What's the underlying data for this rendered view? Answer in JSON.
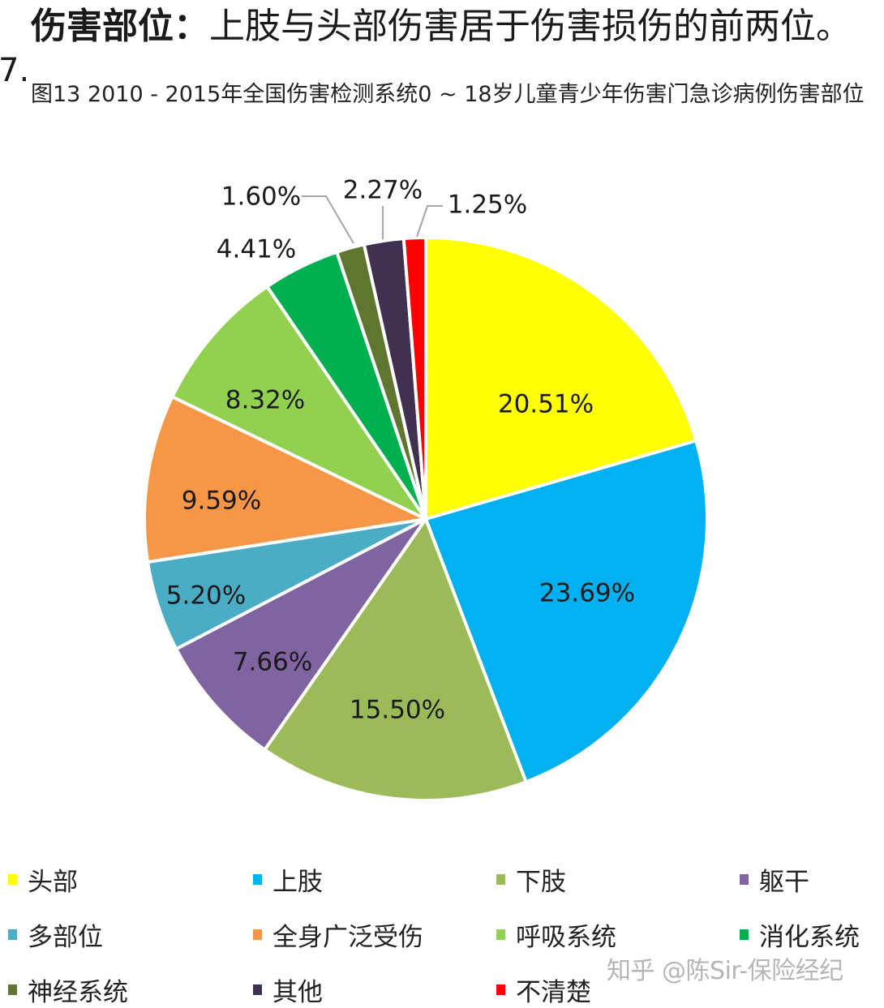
{
  "header": {
    "headline_bold": "伤害部位：",
    "headline_rest": "上肢与头部伤害居于伤害损伤的前两位。",
    "list_number": "7.",
    "caption": "图13  2010 - 2015年全国伤害检测系统0 ~ 18岁儿童青少年伤害门急诊病例伤害部位"
  },
  "chart_data": {
    "type": "pie",
    "title": "2010 - 2015年全国伤害检测系统0 ~ 18岁儿童青少年伤害门急诊病例伤害部位",
    "start_angle_deg": 0,
    "direction": "clockwise",
    "categories": [
      "头部",
      "上肢",
      "下肢",
      "躯干",
      "多部位",
      "全身广泛受伤",
      "呼吸系统",
      "消化系统",
      "神经系统",
      "其他",
      "不清楚"
    ],
    "values": [
      20.51,
      23.69,
      15.5,
      7.66,
      5.2,
      9.59,
      8.32,
      4.41,
      1.6,
      2.27,
      1.25
    ],
    "labels": [
      "20.51%",
      "23.69%",
      "15.50%",
      "7.66%",
      "5.20%",
      "9.59%",
      "8.32%",
      "4.41%",
      "1.60%",
      "2.27%",
      "1.25%"
    ],
    "colors": [
      "#ffff00",
      "#00b0f0",
      "#9bbb59",
      "#8064a2",
      "#4bacc6",
      "#f79646",
      "#92d050",
      "#00b050",
      "#5f7530",
      "#403151",
      "#ff0000"
    ],
    "legend_position": "bottom",
    "legend_columns": 4,
    "unit": "%"
  },
  "watermark": "知乎 @陈Sir-保险经纪"
}
